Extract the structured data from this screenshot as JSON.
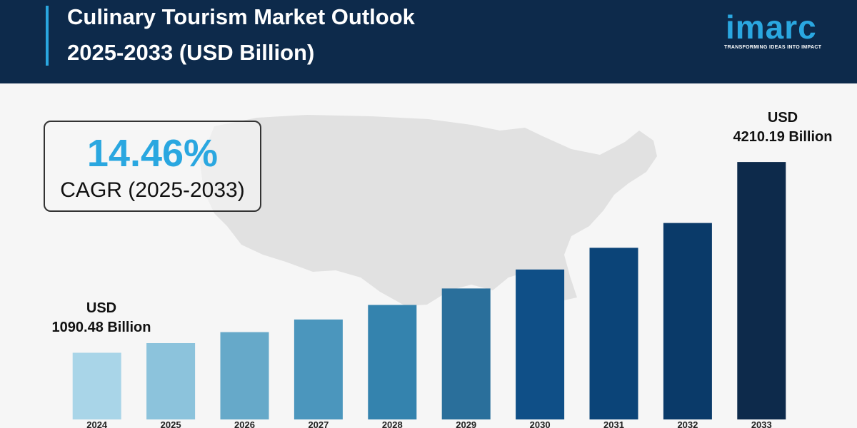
{
  "header": {
    "title_line1": "Culinary Tourism Market Outlook",
    "title_line2": "2025-2033 (USD Billion)",
    "bg_color": "#0d2a4b",
    "accent_color": "#2aa7e0"
  },
  "logo": {
    "word": "imarc",
    "tagline": "TRANSFORMING IDEAS INTO IMPACT"
  },
  "cagr": {
    "value": "14.46%",
    "label": "CAGR (2025-2033)"
  },
  "annotations": {
    "first_currency": "USD",
    "first_value": "1090.48 Billion",
    "last_currency": "USD",
    "last_value": "4210.19 Billion"
  },
  "chart_data": {
    "type": "bar",
    "title": "Culinary Tourism Market Outlook 2025-2033 (USD Billion)",
    "categories": [
      "2024",
      "2025",
      "2026",
      "2027",
      "2028",
      "2029",
      "2030",
      "2031",
      "2032",
      "2033"
    ],
    "values": [
      1090.48,
      1248,
      1428,
      1635,
      1872,
      2142,
      2452,
      2807,
      3213,
      4210.19
    ],
    "ylabel": "",
    "xlabel": "",
    "ylim": [
      0,
      4900
    ],
    "grid": false,
    "colors": [
      "#a9d5e8",
      "#8cc3dc",
      "#66a9c9",
      "#4b96bd",
      "#3483ae",
      "#2a6f9b",
      "#0f4f87",
      "#0b4478",
      "#0a3a69",
      "#0d2a4b"
    ]
  }
}
